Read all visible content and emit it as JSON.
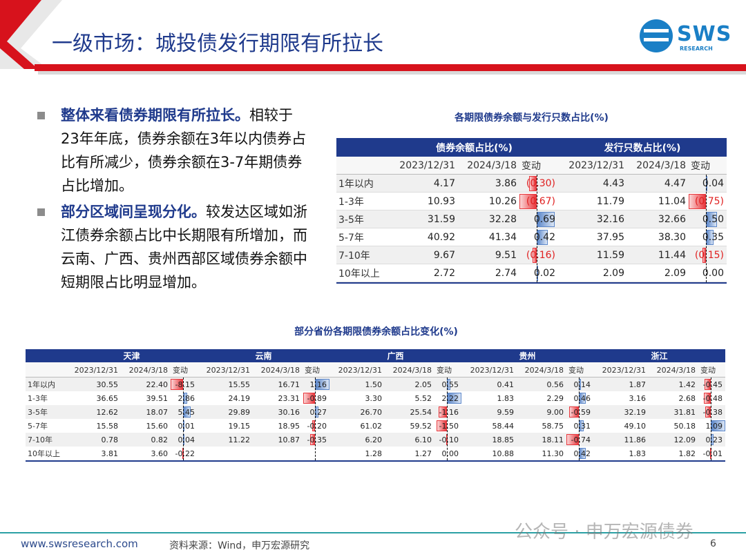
{
  "header": {
    "title": "一级市场：城投债发行期限有所拉长",
    "logo": {
      "brand": "SWS",
      "sub": "RESEARCH"
    }
  },
  "bullets": [
    {
      "bold": "整体来看债券期限有所拉长。",
      "text": "相较于23年年底，债券余额在3年以内债券占比有所减少，债券余额在3-7年期债券占比增加。"
    },
    {
      "bold": "部分区域间呈现分化。",
      "text": "较发达区域如浙江债券余额占比中长期限有所增加，而云南、广西、贵州西部区域债券余额中短期限占比明显增加。"
    }
  ],
  "table1": {
    "title": "各期限债券余额与发行只数占比(%)",
    "groups": [
      "债券余额占比(%)",
      "发行只数占比(%)"
    ],
    "columns": [
      "2023/12/31",
      "2024/3/18",
      "变动",
      "2023/12/31",
      "2024/3/18",
      "变动"
    ],
    "rows": [
      {
        "label": "1年以内",
        "cells": [
          "4.17",
          "3.86",
          "(0.30)",
          "4.43",
          "4.47",
          "0.04"
        ]
      },
      {
        "label": "1-3年",
        "cells": [
          "10.93",
          "10.26",
          "(0.67)",
          "11.79",
          "11.04",
          "(0.75)"
        ]
      },
      {
        "label": "3-5年",
        "cells": [
          "31.59",
          "32.28",
          "0.69",
          "32.16",
          "32.66",
          "0.50"
        ]
      },
      {
        "label": "5-7年",
        "cells": [
          "40.92",
          "41.34",
          "0.42",
          "37.95",
          "38.30",
          "0.35"
        ]
      },
      {
        "label": "7-10年",
        "cells": [
          "9.67",
          "9.51",
          "(0.16)",
          "11.59",
          "11.44",
          "(0.15)"
        ]
      },
      {
        "label": "10年以上",
        "cells": [
          "2.72",
          "2.74",
          "0.02",
          "2.09",
          "2.09",
          "0.00"
        ]
      }
    ]
  },
  "table2": {
    "title": "部分省份各期限债券余额占比变化(%)",
    "groups": [
      "天津",
      "云南",
      "广西",
      "贵州",
      "浙江"
    ],
    "columns": [
      "2023/12/31",
      "2024/3/18",
      "变动",
      "2023/12/31",
      "2024/3/18",
      "变动",
      "2023/12/31",
      "2024/3/18",
      "变动",
      "2023/12/31",
      "2024/3/18",
      "变动",
      "2023/12/31",
      "2024/3/18",
      "变动"
    ],
    "rows": [
      {
        "label": "1年以内",
        "cells": [
          "30.55",
          "22.40",
          "-8.15",
          "15.55",
          "16.71",
          "1.16",
          "1.50",
          "2.05",
          "0.55",
          "0.41",
          "0.56",
          "0.14",
          "1.87",
          "1.42",
          "-0.45"
        ]
      },
      {
        "label": "1-3年",
        "cells": [
          "36.65",
          "39.51",
          "2.86",
          "24.19",
          "23.31",
          "-0.89",
          "3.30",
          "5.52",
          "2.22",
          "1.83",
          "2.29",
          "0.46",
          "3.16",
          "2.68",
          "-0.48"
        ]
      },
      {
        "label": "3-5年",
        "cells": [
          "12.62",
          "18.07",
          "5.45",
          "29.89",
          "30.16",
          "0.27",
          "26.70",
          "25.54",
          "-1.16",
          "9.59",
          "9.00",
          "-0.59",
          "32.19",
          "31.81",
          "-0.38"
        ]
      },
      {
        "label": "5-7年",
        "cells": [
          "15.58",
          "15.60",
          "0.01",
          "19.15",
          "18.95",
          "-0.20",
          "61.02",
          "59.52",
          "-1.50",
          "58.44",
          "58.75",
          "0.31",
          "49.10",
          "50.18",
          "1.09"
        ]
      },
      {
        "label": "7-10年",
        "cells": [
          "0.78",
          "0.82",
          "0.04",
          "11.22",
          "10.87",
          "-0.35",
          "6.20",
          "6.10",
          "-0.10",
          "18.85",
          "18.11",
          "-0.74",
          "11.86",
          "12.09",
          "0.23"
        ]
      },
      {
        "label": "10年以上",
        "cells": [
          "3.81",
          "3.60",
          "-0.22",
          null,
          null,
          null,
          "1.28",
          "1.27",
          "0.00",
          "10.88",
          "11.30",
          "0.42",
          "1.83",
          "1.82",
          "-0.01"
        ]
      }
    ]
  },
  "footer": {
    "url": "www.swsresearch.com",
    "source": "资料来源：Wind，申万宏源研究",
    "page": "6",
    "watermark": "公众号 · 申万宏源债券"
  }
}
